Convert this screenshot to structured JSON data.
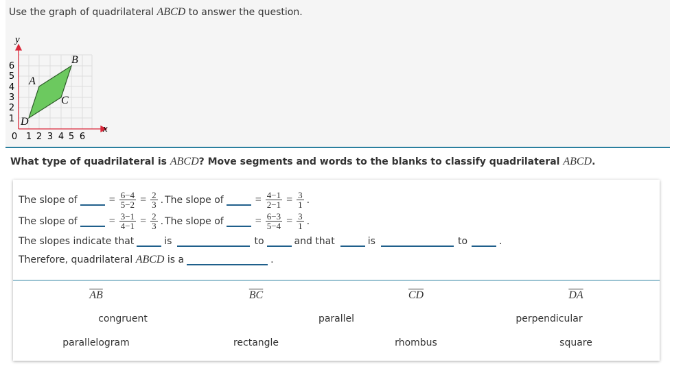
{
  "prompt": {
    "before": "Use the graph of quadrilateral ",
    "math": "ABCD",
    "after": " to answer the question."
  },
  "graph": {
    "x_label": "x",
    "y_label": "y",
    "x_ticks": [
      "0",
      "1",
      "2",
      "3",
      "4",
      "5",
      "6"
    ],
    "y_ticks": [
      "1",
      "2",
      "3",
      "4",
      "5",
      "6"
    ],
    "vertices": [
      "A",
      "B",
      "C",
      "D"
    ]
  },
  "question": {
    "parts": [
      "What type of quadrilateral is ",
      "ABCD",
      "? Move segments and words to the blanks to classify quadrilateral ",
      "ABCD",
      "."
    ]
  },
  "statements": {
    "slope_label": "The slope of",
    "equals": "=",
    "period": ".",
    "slopes": [
      {
        "num": "6−4",
        "den": "5−2",
        "rnum": "2",
        "rden": "3"
      },
      {
        "num": "4−1",
        "den": "2−1",
        "rnum": "3",
        "rden": "1"
      },
      {
        "num": "3−1",
        "den": "4−1",
        "rnum": "2",
        "rden": "3"
      },
      {
        "num": "6−3",
        "den": "5−4",
        "rnum": "3",
        "rden": "1"
      }
    ],
    "line3": [
      "The slopes indicate that",
      "is",
      "to",
      "and that",
      "is",
      "to",
      "."
    ],
    "line4": [
      "Therefore, quadrilateral ",
      "ABCD",
      " is a",
      "."
    ]
  },
  "tiles": {
    "segments": [
      "AB",
      "BC",
      "CD",
      "DA"
    ],
    "words": [
      "congruent",
      "parallel",
      "perpendicular"
    ],
    "shapes": [
      "parallelogram",
      "rectangle",
      "rhombus",
      "square"
    ]
  }
}
